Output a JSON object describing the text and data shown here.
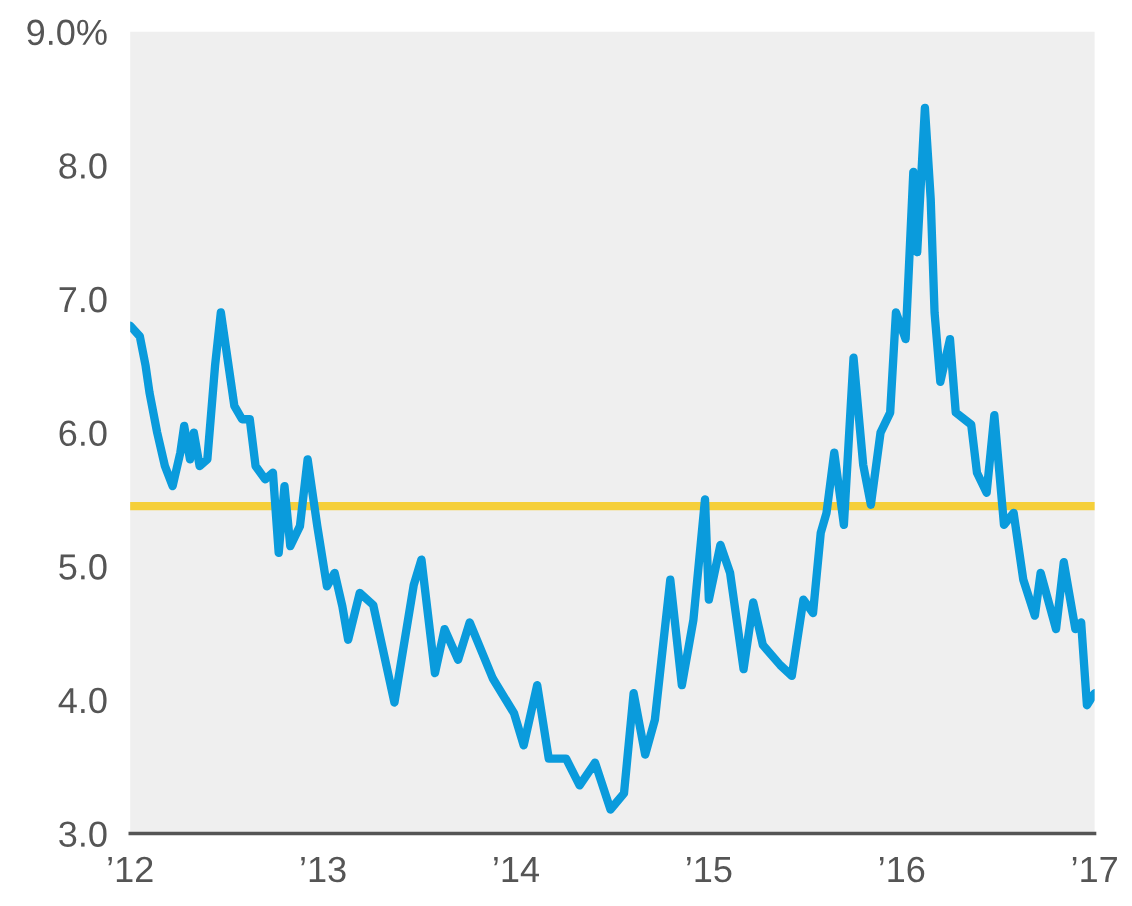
{
  "chart_data": {
    "type": "line",
    "x": [
      2012.0,
      2012.05,
      2012.08,
      2012.1,
      2012.14,
      2012.18,
      2012.22,
      2012.26,
      2012.28,
      2012.31,
      2012.33,
      2012.36,
      2012.4,
      2012.44,
      2012.47,
      2012.5,
      2012.54,
      2012.58,
      2012.62,
      2012.65,
      2012.7,
      2012.74,
      2012.77,
      2012.8,
      2012.83,
      2012.88,
      2012.92,
      2012.97,
      2013.02,
      2013.06,
      2013.1,
      2013.13,
      2013.19,
      2013.26,
      2013.37,
      2013.47,
      2013.51,
      2013.58,
      2013.63,
      2013.7,
      2013.76,
      2013.88,
      2013.99,
      2014.04,
      2014.11,
      2014.17,
      2014.26,
      2014.33,
      2014.41,
      2014.49,
      2014.56,
      2014.61,
      2014.67,
      2014.72,
      2014.8,
      2014.86,
      2014.92,
      2014.98,
      2015.0,
      2015.06,
      2015.11,
      2015.18,
      2015.23,
      2015.28,
      2015.37,
      2015.43,
      2015.49,
      2015.54,
      2015.58,
      2015.61,
      2015.65,
      2015.7,
      2015.75,
      2015.8,
      2015.84,
      2015.89,
      2015.94,
      2015.97,
      2016.02,
      2016.06,
      2016.08,
      2016.12,
      2016.15,
      2016.17,
      2016.2,
      2016.25,
      2016.28,
      2016.36,
      2016.39,
      2016.44,
      2016.48,
      2016.53,
      2016.58,
      2016.63,
      2016.69,
      2016.72,
      2016.8,
      2016.84,
      2016.9,
      2016.93,
      2016.96,
      2017.0
    ],
    "series": [
      {
        "color": "#0a9bdc",
        "values": [
          6.8,
          6.72,
          6.5,
          6.3,
          6.0,
          5.75,
          5.6,
          5.85,
          6.05,
          5.8,
          6.0,
          5.75,
          5.8,
          6.5,
          6.9,
          6.6,
          6.2,
          6.1,
          6.1,
          5.75,
          5.65,
          5.7,
          5.1,
          5.6,
          5.15,
          5.3,
          5.8,
          5.3,
          4.85,
          4.95,
          4.7,
          4.45,
          4.8,
          4.71,
          3.98,
          4.86,
          5.05,
          4.2,
          4.53,
          4.3,
          4.58,
          4.16,
          3.9,
          3.66,
          4.11,
          3.56,
          3.56,
          3.36,
          3.53,
          3.18,
          3.3,
          4.05,
          3.59,
          3.85,
          4.9,
          4.11,
          4.6,
          5.5,
          4.75,
          5.16,
          4.95,
          4.23,
          4.73,
          4.41,
          4.26,
          4.18,
          4.75,
          4.65,
          5.25,
          5.4,
          5.85,
          5.31,
          6.56,
          5.76,
          5.46,
          6.0,
          6.15,
          6.9,
          6.7,
          7.95,
          7.35,
          8.43,
          7.75,
          6.9,
          6.38,
          6.7,
          6.15,
          6.06,
          5.7,
          5.55,
          6.13,
          5.31,
          5.4,
          4.9,
          4.63,
          4.95,
          4.53,
          5.03,
          4.53,
          4.58,
          3.96,
          4.05
        ]
      }
    ],
    "ref_lines": [
      {
        "axis": "y",
        "value": 5.45,
        "color": "#f5cf3a"
      }
    ],
    "xlim": [
      2012,
      2017
    ],
    "xticks": [
      {
        "value": 2012,
        "label": "’12"
      },
      {
        "value": 2013,
        "label": "’13"
      },
      {
        "value": 2014,
        "label": "’14"
      },
      {
        "value": 2015,
        "label": "’15"
      },
      {
        "value": 2016,
        "label": "’16"
      },
      {
        "value": 2017,
        "label": "’17"
      }
    ],
    "ylim": [
      3,
      9
    ],
    "yticks": [
      {
        "value": 3,
        "label": "3.0"
      },
      {
        "value": 4,
        "label": "4.0"
      },
      {
        "value": 5,
        "label": "5.0"
      },
      {
        "value": 6,
        "label": "6.0"
      },
      {
        "value": 7,
        "label": "7.0"
      },
      {
        "value": 8,
        "label": "8.0"
      },
      {
        "value": 9,
        "label": "9.0%"
      }
    ],
    "grid": false,
    "legend": false
  }
}
